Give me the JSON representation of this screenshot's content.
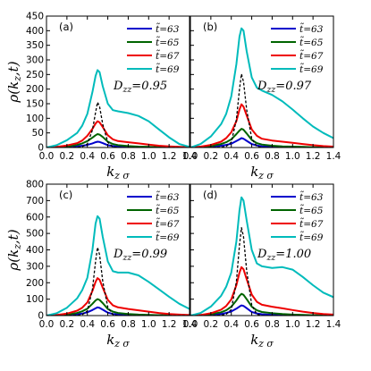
{
  "chart_data": [
    {
      "type": "line",
      "label": "(a)",
      "annotation": "D_zz=0.95",
      "ylabel": "ρ(k_z,t)",
      "xlabel": "k_z σ",
      "xlim": [
        0,
        1.4
      ],
      "ylim": [
        0,
        450
      ],
      "xticks": [
        "0.0",
        "0.2",
        "0.4",
        "0.6",
        "0.8",
        "1.0",
        "1.2",
        "1.4"
      ],
      "yticks": [
        "0",
        "50",
        "100",
        "150",
        "200",
        "250",
        "300",
        "350",
        "400",
        "450"
      ],
      "x": [
        0.0,
        0.1,
        0.2,
        0.3,
        0.35,
        0.4,
        0.45,
        0.48,
        0.5,
        0.52,
        0.55,
        0.6,
        0.65,
        0.7,
        0.8,
        0.9,
        1.0,
        1.1,
        1.2,
        1.3,
        1.4
      ],
      "series": [
        {
          "name": "t̃=63",
          "color": "#0000cc",
          "values": [
            0,
            1,
            2,
            4,
            6,
            9,
            14,
            18,
            20,
            19,
            15,
            8,
            5,
            3,
            2,
            1,
            1,
            0,
            0,
            0,
            0
          ]
        },
        {
          "name": "t̃=65",
          "color": "#006400",
          "values": [
            0,
            1,
            4,
            9,
            14,
            22,
            34,
            42,
            46,
            44,
            36,
            20,
            12,
            8,
            5,
            3,
            2,
            1,
            1,
            0,
            0
          ]
        },
        {
          "name": "t̃=67",
          "color": "#ee0000",
          "values": [
            0,
            2,
            7,
            15,
            24,
            40,
            64,
            82,
            90,
            86,
            70,
            42,
            28,
            22,
            18,
            14,
            10,
            6,
            4,
            2,
            1
          ]
        },
        {
          "name": "t̃=69",
          "color": "#00bbbb",
          "values": [
            0,
            8,
            25,
            50,
            75,
            115,
            190,
            245,
            265,
            258,
            210,
            150,
            128,
            124,
            118,
            108,
            90,
            62,
            35,
            12,
            2
          ]
        },
        {
          "name": "",
          "color": "#000000",
          "dashed": true,
          "values": [
            0,
            0,
            0,
            1,
            3,
            12,
            60,
            120,
            155,
            140,
            80,
            18,
            2,
            0,
            0,
            0,
            0,
            0,
            0,
            0,
            0
          ]
        }
      ]
    },
    {
      "type": "line",
      "label": "(b)",
      "annotation": "D_zz=0.97",
      "xlabel": "k_z σ",
      "xlim": [
        0,
        1.4
      ],
      "ylim": [
        0,
        450
      ],
      "xticks": [
        "0.0",
        "0.2",
        "0.4",
        "0.6",
        "0.8",
        "1.0",
        "1.2",
        "1.4"
      ],
      "x": [
        0.0,
        0.1,
        0.2,
        0.3,
        0.35,
        0.4,
        0.45,
        0.48,
        0.5,
        0.52,
        0.55,
        0.6,
        0.65,
        0.7,
        0.8,
        0.9,
        1.0,
        1.1,
        1.2,
        1.3,
        1.4
      ],
      "series": [
        {
          "name": "t̃=63",
          "color": "#0000cc",
          "values": [
            0,
            1,
            3,
            6,
            9,
            13,
            22,
            28,
            32,
            30,
            23,
            12,
            7,
            4,
            2,
            1,
            1,
            0,
            0,
            0,
            0
          ]
        },
        {
          "name": "t̃=65",
          "color": "#006400",
          "values": [
            0,
            2,
            5,
            12,
            18,
            28,
            46,
            58,
            64,
            61,
            48,
            26,
            15,
            10,
            6,
            4,
            3,
            2,
            1,
            1,
            0
          ]
        },
        {
          "name": "t̃=67",
          "color": "#ee0000",
          "values": [
            0,
            3,
            9,
            20,
            32,
            52,
            90,
            130,
            148,
            140,
            110,
            62,
            40,
            30,
            24,
            20,
            16,
            12,
            8,
            5,
            3
          ]
        },
        {
          "name": "t̃=69",
          "color": "#00bbbb",
          "values": [
            0,
            12,
            38,
            80,
            115,
            175,
            285,
            380,
            408,
            400,
            330,
            240,
            205,
            195,
            180,
            158,
            130,
            100,
            72,
            50,
            32
          ]
        },
        {
          "name": "",
          "color": "#000000",
          "dashed": true,
          "values": [
            0,
            0,
            0,
            1,
            4,
            18,
            95,
            200,
            252,
            225,
            130,
            30,
            4,
            0,
            0,
            0,
            0,
            0,
            0,
            0,
            0
          ]
        }
      ]
    },
    {
      "type": "line",
      "label": "(c)",
      "annotation": "D_zz=0.99",
      "ylabel": "ρ(k_z,t)",
      "xlabel": "k_z σ",
      "xlim": [
        0,
        1.4
      ],
      "ylim": [
        0,
        800
      ],
      "xticks": [
        "0.0",
        "0.2",
        "0.4",
        "0.6",
        "0.8",
        "1.0",
        "1.2",
        "1.4"
      ],
      "yticks": [
        "0",
        "100",
        "200",
        "300",
        "400",
        "500",
        "600",
        "700",
        "800"
      ],
      "x": [
        0.0,
        0.1,
        0.2,
        0.3,
        0.35,
        0.4,
        0.45,
        0.48,
        0.5,
        0.52,
        0.55,
        0.6,
        0.65,
        0.7,
        0.8,
        0.9,
        1.0,
        1.1,
        1.2,
        1.3,
        1.4
      ],
      "series": [
        {
          "name": "t̃=63",
          "color": "#0000cc",
          "values": [
            0,
            1,
            3,
            8,
            12,
            20,
            34,
            44,
            50,
            47,
            36,
            18,
            10,
            6,
            3,
            2,
            1,
            1,
            0,
            0,
            0
          ]
        },
        {
          "name": "t̃=65",
          "color": "#006400",
          "values": [
            0,
            2,
            6,
            16,
            26,
            42,
            72,
            92,
            100,
            95,
            76,
            40,
            24,
            16,
            10,
            6,
            4,
            2,
            1,
            1,
            0
          ]
        },
        {
          "name": "t̃=67",
          "color": "#ee0000",
          "values": [
            0,
            3,
            12,
            30,
            48,
            80,
            150,
            205,
            228,
            218,
            170,
            96,
            62,
            50,
            40,
            32,
            24,
            16,
            10,
            6,
            3
          ]
        },
        {
          "name": "t̃=69",
          "color": "#00bbbb",
          "values": [
            0,
            14,
            48,
            105,
            155,
            230,
            400,
            560,
            605,
            590,
            480,
            330,
            270,
            262,
            262,
            245,
            205,
            160,
            115,
            72,
            40
          ]
        },
        {
          "name": "",
          "color": "#000000",
          "dashed": true,
          "values": [
            0,
            0,
            0,
            2,
            6,
            28,
            160,
            330,
            415,
            370,
            210,
            50,
            6,
            0,
            0,
            0,
            0,
            0,
            0,
            0,
            0
          ]
        }
      ]
    },
    {
      "type": "line",
      "label": "(d)",
      "annotation": "D_zz=1.00",
      "xlabel": "k_z σ",
      "xlim": [
        0,
        1.4
      ],
      "ylim": [
        0,
        800
      ],
      "xticks": [
        "0.0",
        "0.2",
        "0.4",
        "0.6",
        "0.8",
        "1.0",
        "1.2",
        "1.4"
      ],
      "x": [
        0.0,
        0.1,
        0.2,
        0.3,
        0.35,
        0.4,
        0.45,
        0.48,
        0.5,
        0.52,
        0.55,
        0.6,
        0.65,
        0.7,
        0.8,
        0.9,
        1.0,
        1.1,
        1.2,
        1.3,
        1.4
      ],
      "series": [
        {
          "name": "t̃=63",
          "color": "#0000cc",
          "values": [
            0,
            1,
            4,
            10,
            16,
            25,
            42,
            55,
            62,
            59,
            45,
            22,
            13,
            8,
            4,
            2,
            1,
            1,
            0,
            0,
            0
          ]
        },
        {
          "name": "t̃=65",
          "color": "#006400",
          "values": [
            0,
            2,
            8,
            20,
            32,
            54,
            92,
            120,
            132,
            126,
            100,
            54,
            32,
            22,
            14,
            9,
            6,
            4,
            2,
            1,
            1
          ]
        },
        {
          "name": "t̃=67",
          "color": "#ee0000",
          "values": [
            0,
            4,
            14,
            36,
            58,
            98,
            185,
            262,
            295,
            282,
            222,
            128,
            84,
            66,
            54,
            44,
            34,
            24,
            16,
            10,
            6
          ]
        },
        {
          "name": "t̃=69",
          "color": "#00bbbb",
          "values": [
            0,
            16,
            55,
            120,
            175,
            262,
            450,
            640,
            720,
            700,
            580,
            400,
            318,
            300,
            290,
            295,
            280,
            235,
            185,
            140,
            112
          ]
        },
        {
          "name": "",
          "color": "#000000",
          "dashed": true,
          "values": [
            0,
            0,
            0,
            2,
            8,
            36,
            205,
            430,
            535,
            480,
            275,
            64,
            8,
            0,
            0,
            0,
            0,
            0,
            0,
            0,
            0
          ]
        }
      ]
    }
  ]
}
